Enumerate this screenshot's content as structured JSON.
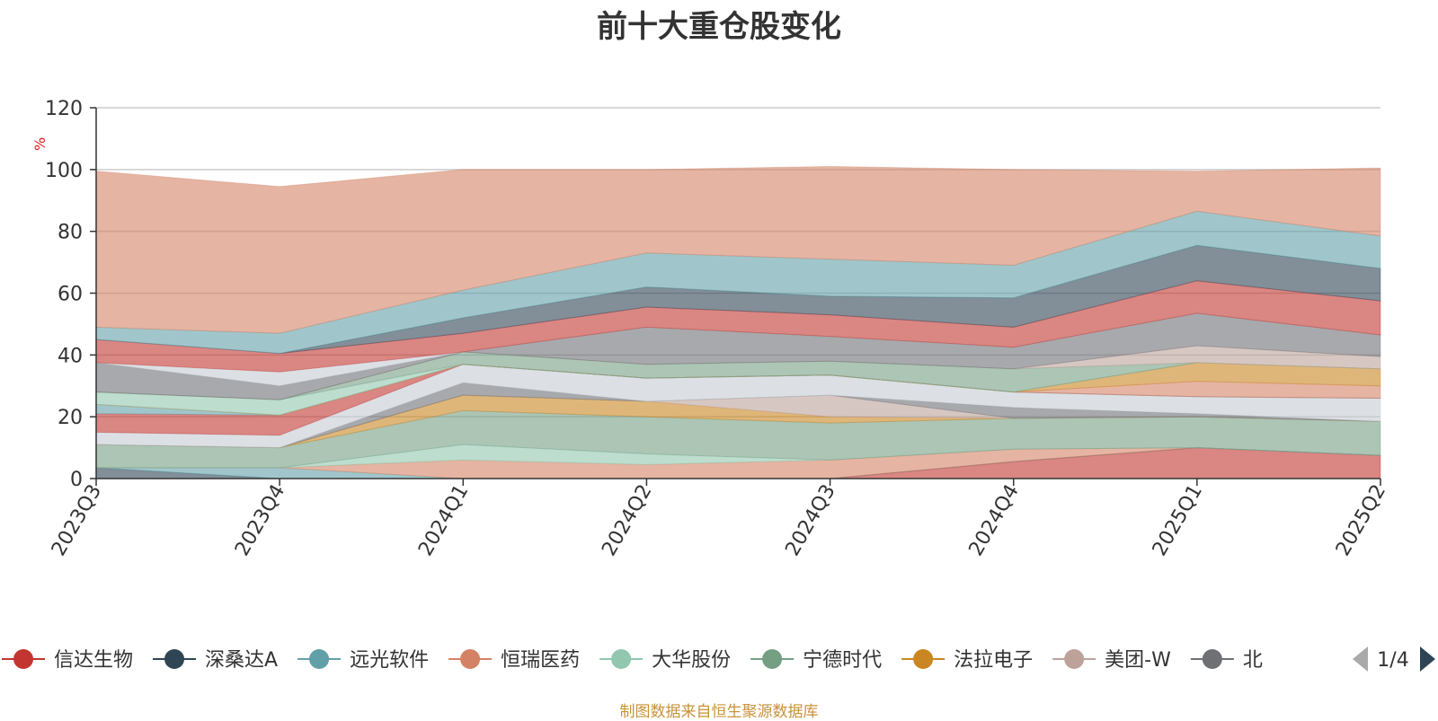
{
  "footer": "制图数据来自恒生聚源数据库",
  "legend_page": "1/4",
  "colors": {
    "prev_arrow": "#aaaaaa",
    "next_arrow": "#2f4554"
  },
  "chart_data": {
    "type": "area",
    "stacked": true,
    "title": "前十大重仓股变化",
    "ylabel": "%",
    "ylim": [
      0,
      120
    ],
    "yticks": [
      0,
      20,
      40,
      60,
      80,
      100,
      120
    ],
    "grid": true,
    "legend_position": "bottom",
    "x": [
      "2023Q3",
      "2023Q4",
      "2024Q1",
      "2024Q2",
      "2024Q3",
      "2024Q4",
      "2025Q1",
      "2025Q2"
    ],
    "series": [
      {
        "name": "信达生物",
        "legend": true,
        "color": "#c23531",
        "values": [
          0,
          0,
          0,
          0,
          0,
          5.5,
          10,
          7.5
        ]
      },
      {
        "name": "深桑达A",
        "legend": true,
        "color": "#2f4554",
        "values": [
          3.5,
          0,
          0,
          0,
          0,
          0,
          0,
          0
        ]
      },
      {
        "name": "远光软件",
        "legend": true,
        "color": "#61a0a8",
        "values": [
          0,
          3.5,
          0,
          0,
          0,
          0,
          0,
          0
        ]
      },
      {
        "name": "恒瑞医药",
        "legend": true,
        "color": "#d48265",
        "values": [
          0,
          0,
          6,
          4.5,
          6,
          4,
          0,
          0
        ]
      },
      {
        "name": "大华股份",
        "legend": true,
        "color": "#91c7ae",
        "values": [
          0,
          0,
          5,
          3.5,
          0,
          0,
          0,
          0
        ]
      },
      {
        "name": "宁德时代",
        "legend": true,
        "color": "#749f83",
        "values": [
          7.5,
          6.5,
          11,
          12,
          12,
          10,
          10,
          11
        ]
      },
      {
        "name": "法拉电子",
        "legend": true,
        "color": "#ca8622",
        "values": [
          0,
          0,
          5,
          5,
          2,
          0,
          0,
          0
        ]
      },
      {
        "name": "美团-W",
        "legend": true,
        "color": "#bda29a",
        "values": [
          0,
          0,
          0,
          0,
          7,
          0,
          0,
          0
        ]
      },
      {
        "name": "北",
        "legend": true,
        "color": "#6e7074",
        "values": [
          0,
          0,
          4,
          0,
          0,
          3.5,
          1,
          0
        ]
      },
      {
        "name": "",
        "legend": false,
        "color": "#c4ccd3",
        "values": [
          4,
          4,
          6,
          7.5,
          6.5,
          5,
          5.5,
          7.5
        ]
      },
      {
        "name": "",
        "legend": false,
        "color": "#c23531",
        "values": [
          6,
          6.5,
          0,
          0,
          0,
          0,
          0,
          0
        ]
      },
      {
        "name": "",
        "legend": false,
        "color": "#61a0a8",
        "values": [
          3,
          0,
          0,
          0,
          0,
          0,
          0,
          0
        ]
      },
      {
        "name": "",
        "legend": false,
        "color": "#d48265",
        "values": [
          0,
          0,
          0,
          0,
          0,
          0,
          5,
          4
        ]
      },
      {
        "name": "",
        "legend": false,
        "color": "#ca8622",
        "values": [
          0,
          0,
          0,
          0,
          0,
          0,
          6,
          5.5
        ]
      },
      {
        "name": "",
        "legend": false,
        "color": "#91c7ae",
        "values": [
          4,
          5,
          0,
          0,
          0,
          0,
          0,
          0
        ]
      },
      {
        "name": "",
        "legend": false,
        "color": "#749f83",
        "values": [
          0,
          0,
          4,
          4.5,
          4.5,
          7.5,
          0,
          0
        ]
      },
      {
        "name": "",
        "legend": false,
        "color": "#bda29a",
        "values": [
          0,
          0,
          0,
          0,
          0,
          0,
          5.5,
          4
        ]
      },
      {
        "name": "",
        "legend": false,
        "color": "#6e7074",
        "values": [
          9.5,
          4.5,
          0,
          12,
          8,
          7,
          10.5,
          7
        ]
      },
      {
        "name": "",
        "legend": false,
        "color": "#c4ccd3",
        "values": [
          0,
          4.5,
          0,
          0,
          0,
          0,
          0,
          0
        ]
      },
      {
        "name": "",
        "legend": false,
        "color": "#c23531",
        "values": [
          7.5,
          6,
          6,
          6.5,
          7,
          6.5,
          10.5,
          11
        ]
      },
      {
        "name": "",
        "legend": false,
        "color": "#2f4554",
        "values": [
          0,
          0,
          5,
          6.5,
          6,
          9.5,
          11.5,
          10.5
        ]
      },
      {
        "name": "",
        "legend": false,
        "color": "#61a0a8",
        "values": [
          4,
          6.5,
          9,
          11,
          12,
          10.5,
          11,
          10.5
        ]
      },
      {
        "name": "",
        "legend": false,
        "color": "#d48265",
        "values": [
          50.5,
          47.5,
          39,
          27,
          30,
          31,
          13,
          22
        ]
      }
    ]
  }
}
